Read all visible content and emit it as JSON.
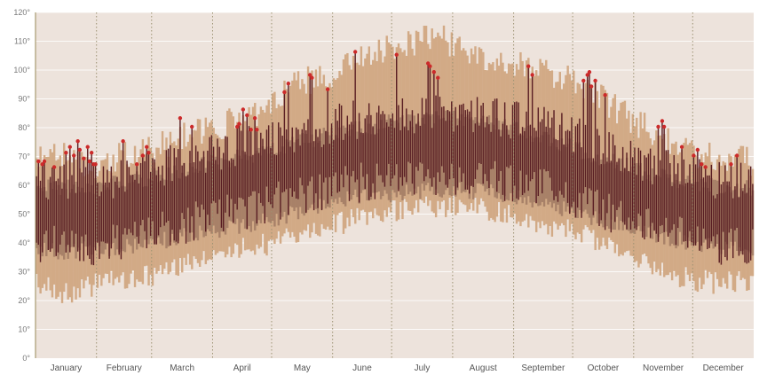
{
  "chart_data": {
    "type": "area",
    "title": "",
    "xlabel": "",
    "ylabel": "",
    "ylim": [
      0,
      120
    ],
    "y_ticks": [
      0,
      10,
      20,
      30,
      40,
      50,
      60,
      70,
      80,
      90,
      100,
      110,
      120
    ],
    "y_tick_suffix": "°",
    "grid": "horizontal",
    "months": [
      "January",
      "February",
      "March",
      "April",
      "May",
      "June",
      "July",
      "August",
      "September",
      "October",
      "November",
      "December"
    ],
    "month_days": [
      31,
      28,
      31,
      30,
      31,
      30,
      31,
      31,
      30,
      31,
      30,
      31
    ],
    "record_band": {
      "high_day": [
        1,
        15,
        32,
        46,
        60,
        74,
        91,
        105,
        121,
        135,
        152,
        166,
        182,
        196,
        205,
        213,
        227,
        244,
        258,
        274,
        288,
        305,
        319,
        335,
        349,
        365
      ],
      "high_value": [
        69,
        70,
        66,
        71,
        72,
        77,
        80,
        83,
        88,
        96,
        98,
        104,
        108,
        110,
        112,
        108,
        104,
        102,
        100,
        96,
        90,
        82,
        77,
        71,
        70,
        68
      ],
      "low_day": [
        1,
        15,
        32,
        46,
        60,
        74,
        91,
        105,
        121,
        135,
        152,
        166,
        182,
        196,
        213,
        227,
        244,
        258,
        274,
        288,
        305,
        319,
        335,
        349,
        365
      ],
      "low_value": [
        26,
        22,
        26,
        28,
        29,
        32,
        35,
        38,
        40,
        43,
        46,
        49,
        51,
        52,
        53,
        52,
        50,
        47,
        44,
        40,
        35,
        30,
        27,
        26,
        27
      ]
    },
    "normal_band": {
      "day": [
        1,
        15,
        32,
        46,
        60,
        74,
        91,
        105,
        121,
        135,
        152,
        166,
        182,
        196,
        213,
        227,
        244,
        258,
        274,
        288,
        305,
        319,
        335,
        349,
        365
      ],
      "high": [
        59,
        59,
        60,
        61,
        63,
        65,
        68,
        70,
        72,
        75,
        78,
        80,
        82,
        83,
        83,
        82,
        80,
        77,
        73,
        69,
        66,
        63,
        61,
        59,
        59
      ],
      "low": [
        38,
        37,
        38,
        39,
        40,
        42,
        44,
        46,
        48,
        51,
        54,
        56,
        57,
        58,
        58,
        58,
        56,
        54,
        51,
        48,
        45,
        42,
        40,
        39,
        38
      ]
    },
    "actual": {
      "mean_day": [
        1,
        15,
        32,
        46,
        60,
        74,
        91,
        105,
        121,
        135,
        152,
        166,
        182,
        196,
        213,
        227,
        244,
        258,
        274,
        288,
        305,
        319,
        335,
        349,
        365
      ],
      "mean_value": [
        50,
        50,
        50,
        52,
        54,
        57,
        60,
        62,
        65,
        67,
        70,
        72,
        73,
        74,
        74,
        73,
        72,
        70,
        67,
        63,
        58,
        55,
        52,
        50,
        50
      ]
    },
    "record_highs": [
      {
        "day": 2,
        "value": 68
      },
      {
        "day": 4,
        "value": 67
      },
      {
        "day": 5,
        "value": 68
      },
      {
        "day": 10,
        "value": 66
      },
      {
        "day": 16,
        "value": 71
      },
      {
        "day": 18,
        "value": 73
      },
      {
        "day": 20,
        "value": 70
      },
      {
        "day": 22,
        "value": 75
      },
      {
        "day": 23,
        "value": 72
      },
      {
        "day": 25,
        "value": 69
      },
      {
        "day": 27,
        "value": 73
      },
      {
        "day": 28,
        "value": 68
      },
      {
        "day": 29,
        "value": 71
      },
      {
        "day": 30,
        "value": 67
      },
      {
        "day": 31,
        "value": 67
      },
      {
        "day": 45,
        "value": 75
      },
      {
        "day": 52,
        "value": 67
      },
      {
        "day": 55,
        "value": 70
      },
      {
        "day": 57,
        "value": 73
      },
      {
        "day": 58,
        "value": 71
      },
      {
        "day": 74,
        "value": 83
      },
      {
        "day": 80,
        "value": 80
      },
      {
        "day": 103,
        "value": 80
      },
      {
        "day": 104,
        "value": 81
      },
      {
        "day": 106,
        "value": 86
      },
      {
        "day": 108,
        "value": 84
      },
      {
        "day": 110,
        "value": 79
      },
      {
        "day": 112,
        "value": 83
      },
      {
        "day": 113,
        "value": 79
      },
      {
        "day": 127,
        "value": 92
      },
      {
        "day": 129,
        "value": 95
      },
      {
        "day": 140,
        "value": 98
      },
      {
        "day": 141,
        "value": 97
      },
      {
        "day": 149,
        "value": 93
      },
      {
        "day": 163,
        "value": 106
      },
      {
        "day": 184,
        "value": 105
      },
      {
        "day": 200,
        "value": 102
      },
      {
        "day": 201,
        "value": 101
      },
      {
        "day": 203,
        "value": 99
      },
      {
        "day": 205,
        "value": 97
      },
      {
        "day": 251,
        "value": 101
      },
      {
        "day": 253,
        "value": 98
      },
      {
        "day": 279,
        "value": 96
      },
      {
        "day": 281,
        "value": 98
      },
      {
        "day": 282,
        "value": 99
      },
      {
        "day": 283,
        "value": 94
      },
      {
        "day": 285,
        "value": 96
      },
      {
        "day": 290,
        "value": 91
      },
      {
        "day": 317,
        "value": 80
      },
      {
        "day": 319,
        "value": 82
      },
      {
        "day": 320,
        "value": 80
      },
      {
        "day": 329,
        "value": 73
      },
      {
        "day": 335,
        "value": 70
      },
      {
        "day": 337,
        "value": 72
      },
      {
        "day": 339,
        "value": 67
      },
      {
        "day": 341,
        "value": 66
      },
      {
        "day": 354,
        "value": 67
      },
      {
        "day": 357,
        "value": 70
      }
    ],
    "colors": {
      "background": "#ede3dc",
      "record_band": "#d2aa86",
      "normal_band": "#a88168",
      "actual_bar": "#5a1f24",
      "record_marker": "#cc2a2a",
      "grid": "#ffffff",
      "month_separator": "#9c9272",
      "axis": "#a89a70"
    }
  }
}
